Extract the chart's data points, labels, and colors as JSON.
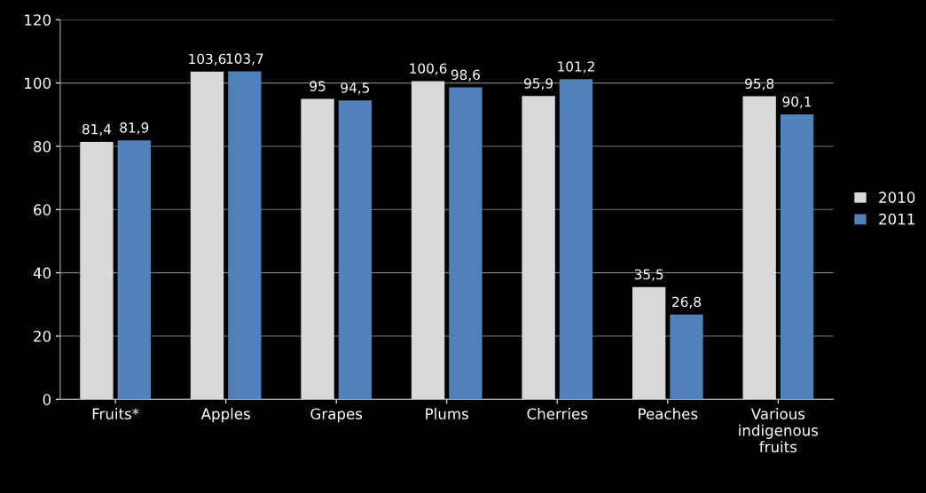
{
  "chart_data": {
    "type": "bar",
    "categories": [
      "Fruits*",
      "Apples",
      "Grapes",
      "Plums",
      "Cherries",
      "Peaches",
      "Various indigenous fruits"
    ],
    "series": [
      {
        "name": "2010",
        "color": "#d9d9d9",
        "values": [
          81.4,
          103.6,
          95,
          100.6,
          95.9,
          35.5,
          95.8
        ],
        "value_labels": [
          "81,4",
          "103,6",
          "95",
          "100,6",
          "95,9",
          "35,5",
          "95,8"
        ]
      },
      {
        "name": "2011",
        "color": "#4f81bd",
        "values": [
          81.9,
          103.7,
          94.5,
          98.6,
          101.2,
          26.8,
          90.1
        ],
        "value_labels": [
          "81,9",
          "103,7",
          "94,5",
          "98,6",
          "101,2",
          "26,8",
          "90,1"
        ]
      }
    ],
    "ylim": [
      0,
      120
    ],
    "yticks": [
      0,
      20,
      40,
      60,
      80,
      100,
      120
    ],
    "grid": "y",
    "legend": "right"
  }
}
